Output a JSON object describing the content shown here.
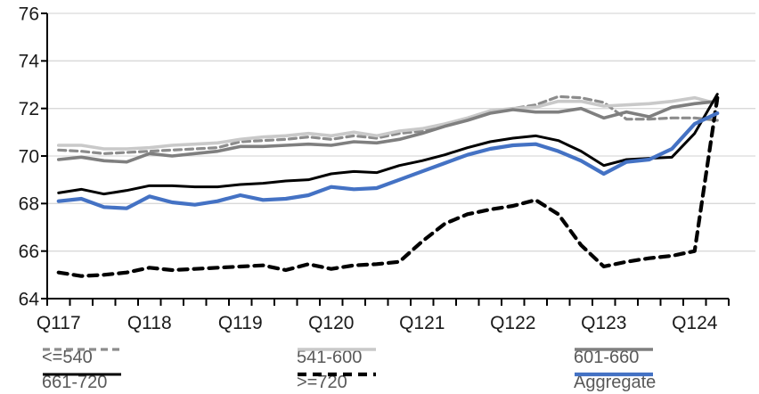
{
  "chart": {
    "y_axis": {
      "labels": [
        "76",
        "74",
        "72",
        "70",
        "68",
        "66",
        "64"
      ]
    },
    "x_axis": {
      "year_labels": [
        "Q117",
        "Q118",
        "Q119",
        "Q120",
        "Q121",
        "Q122",
        "Q123",
        "Q124"
      ]
    },
    "colors": {
      "grid": "#d9d9d9",
      "axis": "#000000",
      "legend_text": "#595959"
    }
  },
  "chart_data": {
    "type": "line",
    "x": [
      "2017Q1",
      "2017Q2",
      "2017Q3",
      "2017Q4",
      "2018Q1",
      "2018Q2",
      "2018Q3",
      "2018Q4",
      "2019Q1",
      "2019Q2",
      "2019Q3",
      "2019Q4",
      "2020Q1",
      "2020Q2",
      "2020Q3",
      "2020Q4",
      "2021Q1",
      "2021Q2",
      "2021Q3",
      "2021Q4",
      "2022Q1",
      "2022Q2",
      "2022Q3",
      "2022Q4",
      "2023Q1",
      "2023Q2",
      "2023Q3",
      "2023Q4",
      "2024Q1",
      "2024Q2"
    ],
    "ylim": [
      64,
      76
    ],
    "y_step": 2,
    "grid": "horizontal",
    "legend_position": "bottom",
    "series": [
      {
        "name": "<=540",
        "color": "#8c8c8c",
        "dash": "8 5",
        "width": 3.2,
        "values": [
          70.25,
          70.2,
          70.1,
          70.15,
          70.2,
          70.25,
          70.3,
          70.35,
          70.6,
          70.65,
          70.7,
          70.8,
          70.7,
          70.85,
          70.75,
          70.95,
          71.05,
          71.3,
          71.55,
          71.85,
          72.0,
          72.15,
          72.5,
          72.45,
          72.25,
          71.55,
          71.55,
          71.6,
          71.6,
          71.5
        ]
      },
      {
        "name": "541-600",
        "color": "#c9c9c9",
        "dash": null,
        "width": 3.6,
        "values": [
          70.45,
          70.45,
          70.3,
          70.3,
          70.35,
          70.45,
          70.5,
          70.55,
          70.7,
          70.8,
          70.85,
          70.95,
          70.85,
          71.0,
          70.85,
          71.05,
          71.15,
          71.35,
          71.6,
          71.9,
          72.0,
          72.05,
          72.3,
          72.3,
          72.1,
          72.15,
          72.2,
          72.3,
          72.45,
          72.2
        ]
      },
      {
        "name": "601-660",
        "color": "#7f7f7f",
        "dash": null,
        "width": 3.6,
        "values": [
          69.85,
          69.95,
          69.8,
          69.75,
          70.1,
          70.0,
          70.1,
          70.2,
          70.4,
          70.4,
          70.45,
          70.5,
          70.45,
          70.6,
          70.55,
          70.7,
          70.95,
          71.25,
          71.5,
          71.8,
          71.95,
          71.85,
          71.85,
          72.0,
          71.6,
          71.85,
          71.65,
          72.05,
          72.2,
          72.3
        ]
      },
      {
        "name": "661-720",
        "color": "#000000",
        "dash": null,
        "width": 3.0,
        "values": [
          68.45,
          68.6,
          68.4,
          68.55,
          68.75,
          68.75,
          68.7,
          68.7,
          68.8,
          68.85,
          68.95,
          69.0,
          69.25,
          69.35,
          69.3,
          69.6,
          69.8,
          70.05,
          70.35,
          70.6,
          70.75,
          70.85,
          70.65,
          70.2,
          69.6,
          69.85,
          69.9,
          69.95,
          70.95,
          72.6
        ]
      },
      {
        "name": ">=720",
        "color": "#000000",
        "dash": "10 7",
        "width": 4.2,
        "values": [
          65.1,
          64.95,
          65.0,
          65.1,
          65.3,
          65.2,
          65.25,
          65.3,
          65.35,
          65.4,
          65.2,
          65.45,
          65.25,
          65.4,
          65.45,
          65.55,
          66.4,
          67.15,
          67.55,
          67.75,
          67.9,
          68.15,
          67.55,
          66.25,
          65.35,
          65.55,
          65.7,
          65.8,
          66.0,
          72.45
        ]
      },
      {
        "name": "Aggregate",
        "color": "#4472c4",
        "dash": null,
        "width": 4.2,
        "values": [
          68.1,
          68.2,
          67.85,
          67.8,
          68.3,
          68.05,
          67.95,
          68.1,
          68.35,
          68.15,
          68.2,
          68.35,
          68.7,
          68.6,
          68.65,
          69.0,
          69.35,
          69.7,
          70.05,
          70.3,
          70.45,
          70.5,
          70.2,
          69.8,
          69.25,
          69.75,
          69.85,
          70.3,
          71.35,
          71.8
        ]
      }
    ]
  }
}
